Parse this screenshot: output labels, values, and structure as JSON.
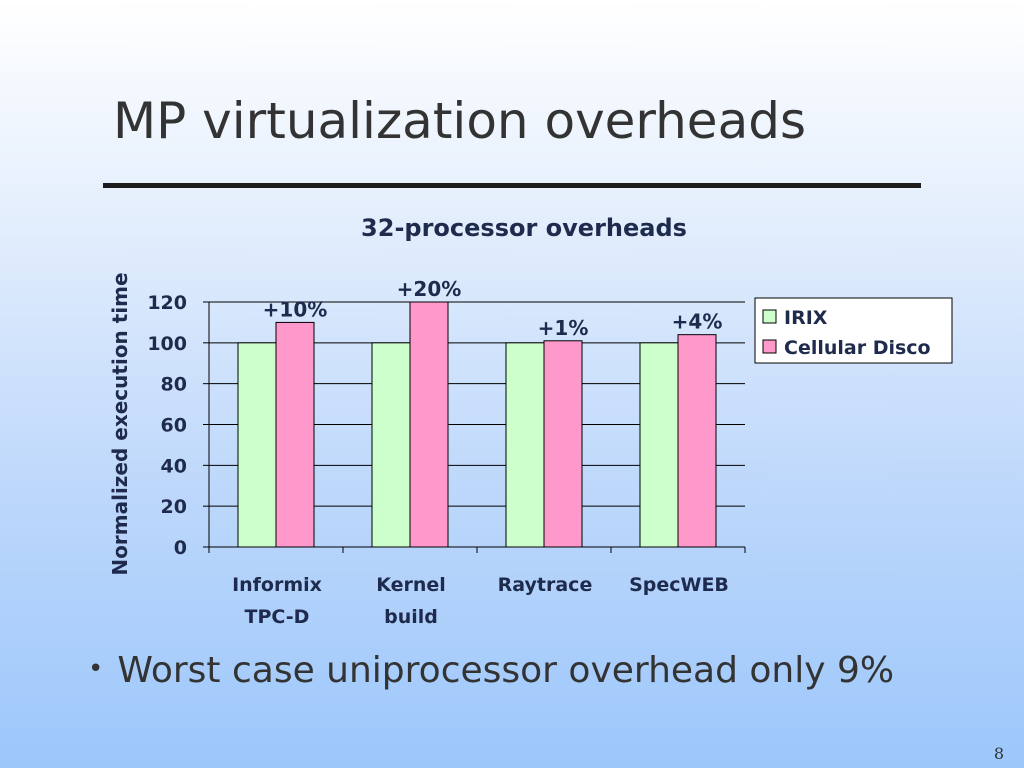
{
  "slide": {
    "title": "MP virtualization overheads",
    "bullet": "Worst case uniprocessor overhead only 9%",
    "page_number": "8"
  },
  "chart_data": {
    "type": "bar",
    "title": "32-processor overheads",
    "xlabel": "",
    "ylabel": "Normalized execution time",
    "categories": [
      [
        "Informix",
        "TPC-D"
      ],
      [
        "Kernel",
        "build"
      ],
      [
        "Raytrace"
      ],
      [
        "SpecWEB"
      ]
    ],
    "series": [
      {
        "name": "IRIX",
        "values": [
          100,
          100,
          100,
          100
        ],
        "color": "#ccffcc"
      },
      {
        "name": "Cellular Disco",
        "values": [
          110,
          120,
          101,
          104
        ],
        "color": "#ff99cc"
      }
    ],
    "data_labels": [
      "+10%",
      "+20%",
      "+1%",
      "+4%"
    ],
    "ylim": [
      0,
      120
    ],
    "yticks": [
      0,
      20,
      40,
      60,
      80,
      100,
      120
    ],
    "grid": true,
    "legend": "right"
  }
}
